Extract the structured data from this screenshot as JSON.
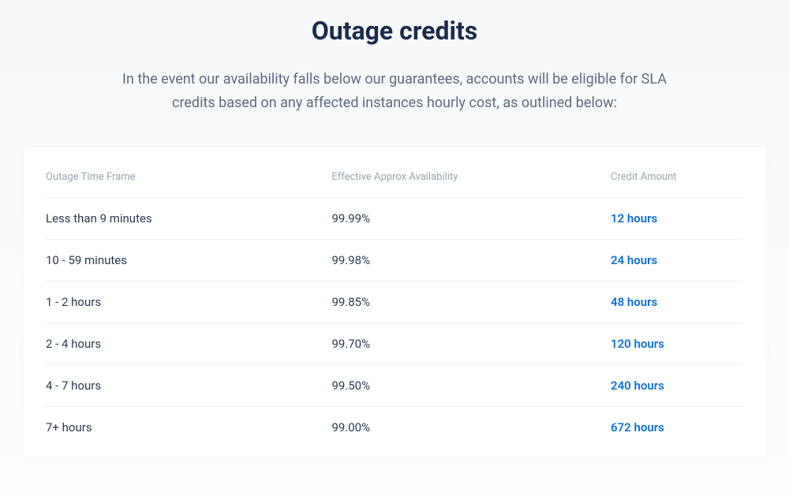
{
  "header": {
    "title": "Outage credits",
    "description": "In the event our availability falls below our guarantees, accounts will be eligible for SLA credits based on any affected instances hourly cost, as outlined below:"
  },
  "table": {
    "columns": [
      "Outage Time Frame",
      "Effective Approx Availability",
      "Credit Amount"
    ],
    "rows": [
      {
        "time_frame": "Less than 9 minutes",
        "availability": "99.99%",
        "credit": "12 hours"
      },
      {
        "time_frame": "10 - 59 minutes",
        "availability": "99.98%",
        "credit": "24 hours"
      },
      {
        "time_frame": "1 - 2 hours",
        "availability": "99.85%",
        "credit": "48 hours"
      },
      {
        "time_frame": "2 - 4 hours",
        "availability": "99.70%",
        "credit": "120 hours"
      },
      {
        "time_frame": "4 - 7 hours",
        "availability": "99.50%",
        "credit": "240 hours"
      },
      {
        "time_frame": "7+ hours",
        "availability": "99.00%",
        "credit": "672 hours"
      }
    ],
    "styling": {
      "header_text_color": "#9aa3b0",
      "cell_text_color": "#2a3a52",
      "credit_text_color": "#0d6fd6",
      "border_color": "#eef0f3",
      "background_color": "#ffffff",
      "header_fontsize": 13,
      "cell_fontsize": 15
    }
  },
  "page_styling": {
    "title_color": "#1a2b4a",
    "title_fontsize": 32,
    "description_color": "#5a6a80",
    "description_fontsize": 18,
    "background_gradient": [
      "#f7f8fa",
      "#fdfdfe"
    ]
  }
}
